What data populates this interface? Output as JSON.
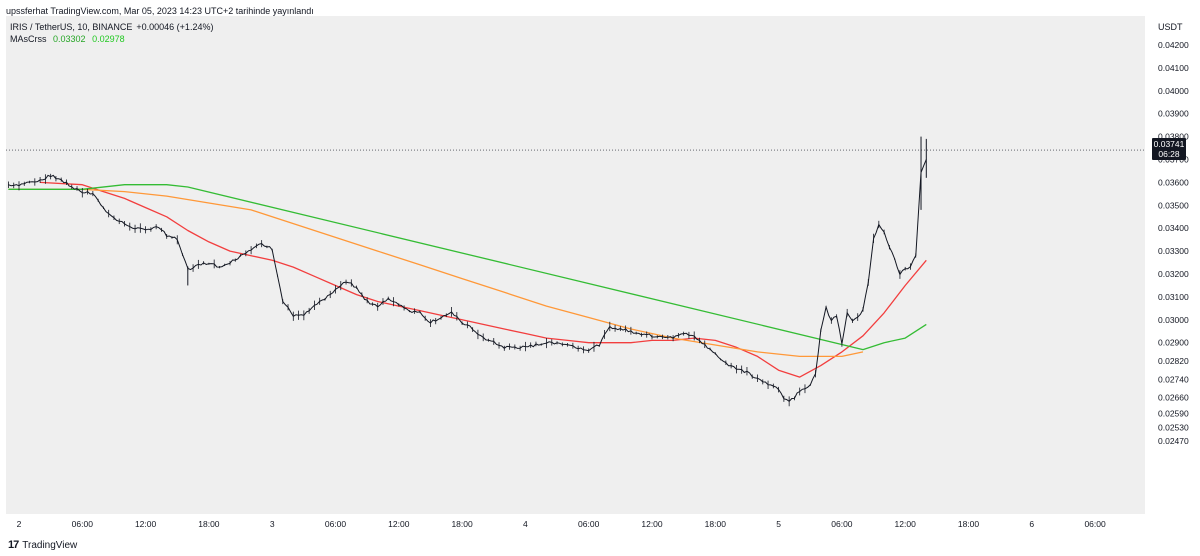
{
  "header": {
    "publish_line": "upssferhat TradingView.com, Mar 05, 2023 14:23 UTC+2 tarihinde yayınlandı"
  },
  "legend": {
    "symbol_line": "IRIS / TetherUS, 10, BINANCE",
    "change": "+0.00046 (+1.24%)",
    "indicator_name": "MAsCrss",
    "indicator_value_1": "0.03302",
    "indicator_value_2": "0.02978"
  },
  "price_axis": {
    "unit": "USDT",
    "current_price": "0.03741",
    "countdown": "06:28"
  },
  "footer": {
    "logo_mark": "17",
    "logo_text": "TradingView"
  },
  "colors": {
    "background": "#efefef",
    "candle": "#131722",
    "ma_fast": "#f23e3e",
    "ma_slow": "#ff9838",
    "ma_cross": "#34bc34"
  },
  "chart_data": {
    "type": "line",
    "title": "IRIS / TetherUS, 10, BINANCE",
    "xlabel": "",
    "ylabel": "USDT",
    "ylim": [
      0.0241,
      0.0431
    ],
    "y_ticks": [
      "0.04200",
      "0.04100",
      "0.04000",
      "0.03900",
      "0.03800",
      "0.03700",
      "0.03600",
      "0.03500",
      "0.03400",
      "0.03300",
      "0.03200",
      "0.03100",
      "0.03000",
      "0.02900",
      "0.02820",
      "0.02740",
      "0.02660",
      "0.02590",
      "0.02530",
      "0.02470"
    ],
    "y_tick_values": [
      0.042,
      0.041,
      0.04,
      0.039,
      0.038,
      0.037,
      0.036,
      0.035,
      0.034,
      0.033,
      0.032,
      0.031,
      0.03,
      0.029,
      0.0282,
      0.0274,
      0.0266,
      0.0259,
      0.0253,
      0.0247
    ],
    "x_ticks": [
      "2",
      "06:00",
      "12:00",
      "18:00",
      "3",
      "06:00",
      "12:00",
      "18:00",
      "4",
      "06:00",
      "12:00",
      "18:00",
      "5",
      "06:00",
      "12:00",
      "18:00",
      "6",
      "06:00"
    ],
    "x_tick_hours": [
      0,
      6,
      12,
      18,
      24,
      30,
      36,
      42,
      48,
      54,
      60,
      66,
      72,
      78,
      84,
      90,
      96,
      102
    ],
    "last_price": 0.03741,
    "series": [
      {
        "name": "Price (close)",
        "hours": [
          -1,
          0,
          2,
          3,
          4,
          5,
          6,
          7,
          8,
          9,
          10,
          11,
          12,
          13,
          14,
          15,
          16,
          17,
          18,
          19,
          20,
          21,
          22,
          23,
          24,
          25,
          26,
          27,
          28,
          29,
          30,
          31,
          32,
          33,
          34,
          35,
          36,
          37,
          38,
          39,
          40,
          41,
          42,
          43,
          44,
          45,
          46,
          47,
          48,
          49,
          50,
          51,
          52,
          53,
          54,
          55,
          56,
          57,
          58,
          59,
          60,
          61,
          62,
          63,
          64,
          65,
          66,
          67,
          68,
          69,
          70,
          71,
          72,
          72.5,
          73,
          73.5,
          74,
          74.5,
          75,
          75.5,
          76,
          76.5,
          77,
          77.5,
          78,
          78.5,
          79,
          79.5,
          80,
          80.5,
          81,
          81.5,
          82,
          82.5,
          83,
          83.5,
          84,
          84.5,
          85,
          85.5,
          86
        ],
        "values": [
          0.0359,
          0.0359,
          0.0361,
          0.0363,
          0.0361,
          0.0358,
          0.0356,
          0.0355,
          0.0349,
          0.0344,
          0.0342,
          0.034,
          0.0339,
          0.0341,
          0.0337,
          0.0335,
          0.0322,
          0.0324,
          0.0325,
          0.0323,
          0.0325,
          0.0328,
          0.0331,
          0.0333,
          0.0331,
          0.0308,
          0.0302,
          0.0302,
          0.0306,
          0.0309,
          0.0313,
          0.0317,
          0.0314,
          0.0308,
          0.0306,
          0.0309,
          0.0307,
          0.0304,
          0.0303,
          0.0299,
          0.0301,
          0.0303,
          0.0299,
          0.0296,
          0.0292,
          0.029,
          0.0288,
          0.0288,
          0.0288,
          0.0289,
          0.029,
          0.029,
          0.0289,
          0.0288,
          0.0287,
          0.0289,
          0.0297,
          0.0296,
          0.0295,
          0.0294,
          0.0293,
          0.0293,
          0.0292,
          0.0294,
          0.0293,
          0.0289,
          0.0285,
          0.0281,
          0.0279,
          0.0277,
          0.0274,
          0.0272,
          0.027,
          0.0266,
          0.0265,
          0.0266,
          0.0269,
          0.027,
          0.0272,
          0.0276,
          0.0296,
          0.0305,
          0.03,
          0.0302,
          0.029,
          0.0303,
          0.0299,
          0.0301,
          0.0305,
          0.0316,
          0.0335,
          0.0342,
          0.0338,
          0.0332,
          0.0326,
          0.032,
          0.0322,
          0.0323,
          0.0328,
          0.0364,
          0.037
        ]
      },
      {
        "name": "MA fast",
        "hours": [
          2,
          6,
          8,
          10,
          12,
          14,
          16,
          18,
          20,
          22,
          24,
          26,
          28,
          30,
          32,
          34,
          36,
          38,
          40,
          42,
          44,
          46,
          48,
          50,
          52,
          54,
          56,
          58,
          60,
          62,
          64,
          66,
          68,
          70,
          72,
          74,
          76,
          78,
          80,
          82,
          84,
          86
        ],
        "values": [
          0.036,
          0.0359,
          0.0356,
          0.0353,
          0.0349,
          0.0345,
          0.0339,
          0.0334,
          0.033,
          0.0328,
          0.0326,
          0.0323,
          0.0319,
          0.0315,
          0.0311,
          0.0308,
          0.0306,
          0.0304,
          0.0302,
          0.03,
          0.0298,
          0.0296,
          0.0294,
          0.0292,
          0.0291,
          0.029,
          0.029,
          0.029,
          0.0291,
          0.0291,
          0.0292,
          0.0291,
          0.0288,
          0.0284,
          0.0278,
          0.0275,
          0.028,
          0.0286,
          0.0293,
          0.0303,
          0.0315,
          0.0326
        ]
      },
      {
        "name": "MA slow",
        "hours": [
          -1,
          2,
          6,
          10,
          14,
          18,
          22,
          26,
          30,
          34,
          38,
          42,
          46,
          50,
          54,
          58,
          62,
          66,
          70,
          74,
          78,
          80
        ],
        "values": [
          0.0357,
          0.0357,
          0.0357,
          0.0356,
          0.0354,
          0.0351,
          0.0348,
          0.0342,
          0.0336,
          0.033,
          0.0324,
          0.0318,
          0.0312,
          0.0306,
          0.0301,
          0.0296,
          0.0292,
          0.0289,
          0.0286,
          0.0284,
          0.0284,
          0.0286
        ]
      },
      {
        "name": "MA cross (signal)",
        "hours": [
          -1,
          2,
          6,
          10,
          14,
          16,
          80,
          82,
          84,
          86
        ],
        "values": [
          0.0357,
          0.0357,
          0.0357,
          0.0359,
          0.0359,
          0.0358,
          0.0287,
          0.029,
          0.0292,
          0.0298
        ]
      }
    ]
  }
}
